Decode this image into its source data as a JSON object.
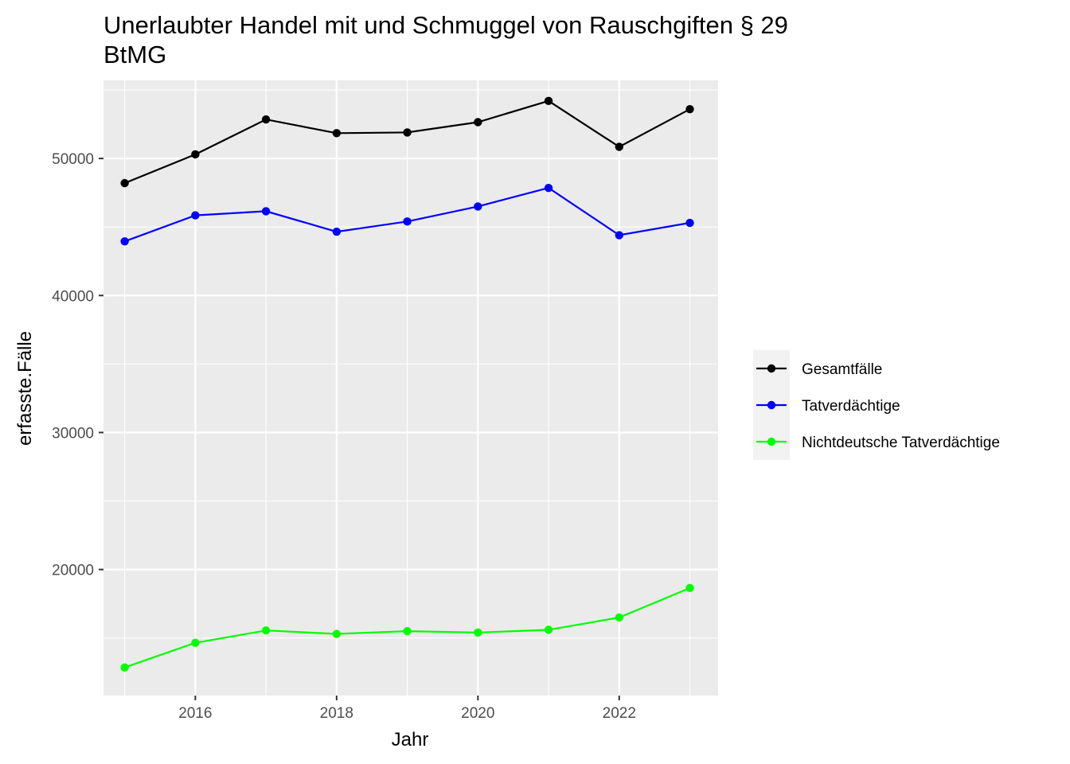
{
  "chart_data": {
    "type": "line",
    "title": "Unerlaubter Handel mit und Schmuggel von Rauschgiften § 29 BtMG",
    "title_lines": [
      "Unerlaubter Handel mit und Schmuggel von Rauschgiften § 29",
      "BtMG"
    ],
    "xlabel": "Jahr",
    "ylabel": "erfasste.Fälle",
    "x": [
      2015,
      2016,
      2017,
      2018,
      2019,
      2020,
      2021,
      2022,
      2023
    ],
    "xlim": [
      2014.7,
      2023.4
    ],
    "ylim": [
      10800,
      55700
    ],
    "x_ticks": [
      2016,
      2018,
      2020,
      2022
    ],
    "y_ticks": [
      20000,
      30000,
      40000,
      50000
    ],
    "grid": true,
    "legend_position": "right",
    "series": [
      {
        "name": "Gesamtfälle",
        "color": "#000000",
        "values": [
          48200,
          50300,
          52850,
          51850,
          51900,
          52650,
          54200,
          50850,
          53600
        ]
      },
      {
        "name": "Tatverdächtige",
        "color": "#0000ff",
        "values": [
          43950,
          45850,
          46150,
          44650,
          45400,
          46500,
          47850,
          44400,
          45300
        ]
      },
      {
        "name": "Nichtdeutsche Tatverdächtige",
        "color": "#00ff00",
        "values": [
          12850,
          14650,
          15550,
          15300,
          15500,
          15400,
          15600,
          16500,
          18650
        ]
      }
    ]
  }
}
